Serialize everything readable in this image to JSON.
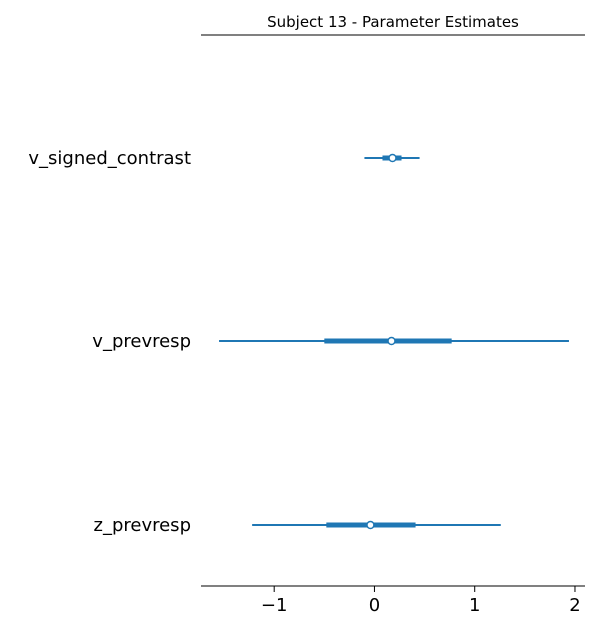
{
  "chart_data": {
    "type": "forest",
    "title": "Subject 13 - Parameter Estimates",
    "xlim": [
      -1.73,
      2.1
    ],
    "xticks": [
      -1,
      0,
      1,
      2
    ],
    "xtick_labels": [
      "−1",
      "0",
      "1",
      "2"
    ],
    "color": "#1f77b4",
    "grid": false,
    "parameters": [
      {
        "label": "v_signed_contrast",
        "mean": 0.18,
        "hdi_outer": [
          -0.1,
          0.45
        ],
        "hdi_inner": [
          0.08,
          0.27
        ]
      },
      {
        "label": "v_prevresp",
        "mean": 0.17,
        "hdi_outer": [
          -1.55,
          1.94
        ],
        "hdi_inner": [
          -0.5,
          0.77
        ]
      },
      {
        "label": "z_prevresp",
        "mean": -0.04,
        "hdi_outer": [
          -1.22,
          1.26
        ],
        "hdi_inner": [
          -0.48,
          0.41
        ]
      }
    ]
  }
}
